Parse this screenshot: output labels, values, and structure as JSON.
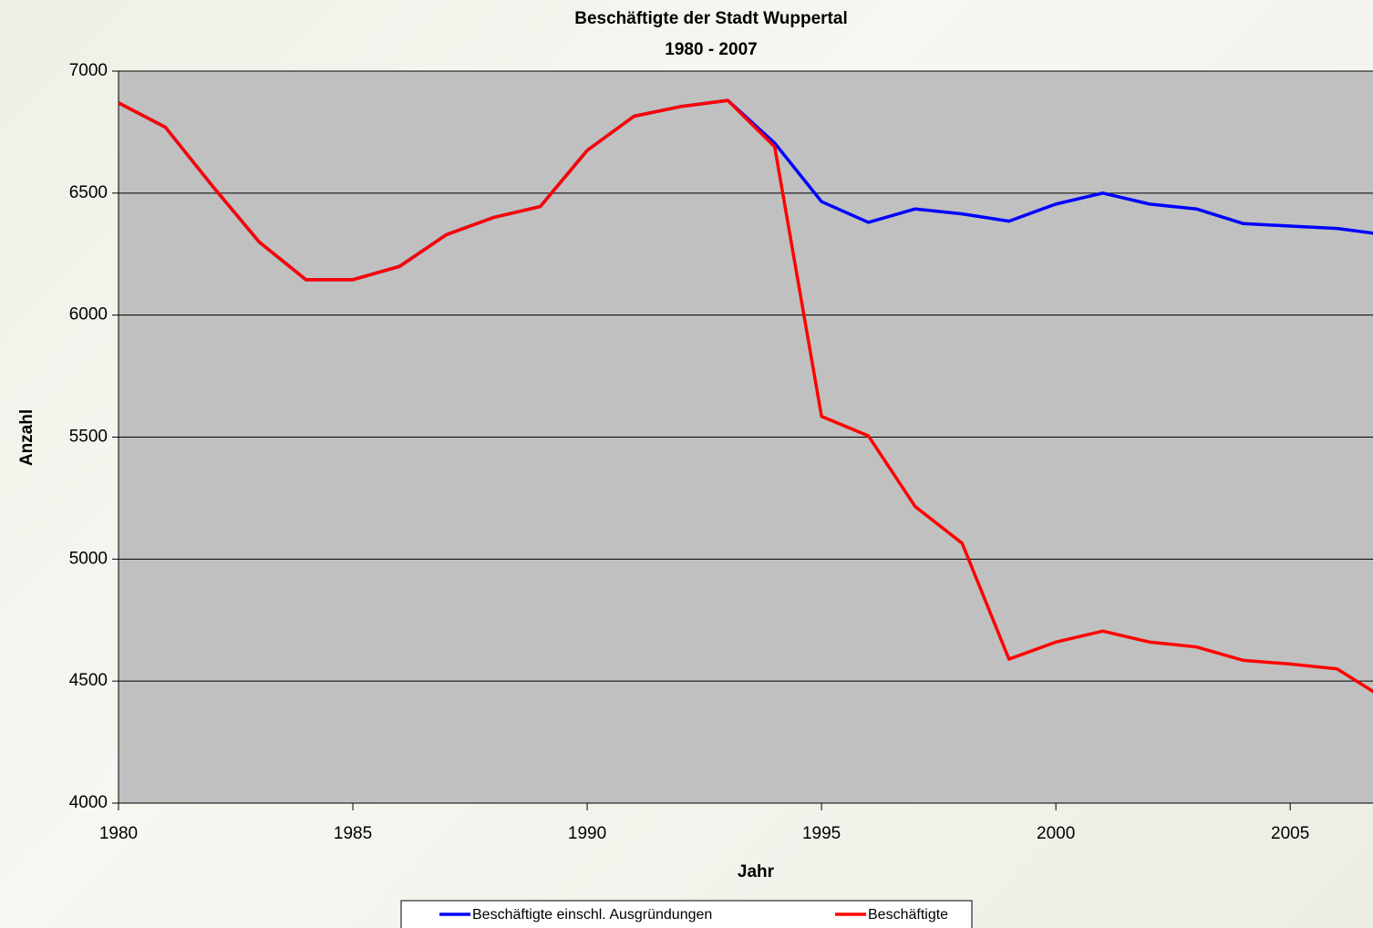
{
  "chart_data": {
    "type": "line",
    "title": "Beschäftigte der Stadt Wuppertal",
    "subtitle": "1980 - 2007",
    "x_label": "Jahr",
    "y_label": "Anzahl",
    "x": [
      1980,
      1981,
      1982,
      1983,
      1984,
      1985,
      1986,
      1987,
      1988,
      1989,
      1990,
      1991,
      1992,
      1993,
      1994,
      1995,
      1996,
      1997,
      1998,
      1999,
      2000,
      2001,
      2002,
      2003,
      2004,
      2005,
      2006,
      2007
    ],
    "series": [
      {
        "name": "Beschäftigte einschl. Ausgründungen",
        "color": "#0000ff",
        "values": [
          6870,
          6770,
          6530,
          6300,
          6145,
          6145,
          6200,
          6330,
          6400,
          6445,
          6675,
          6815,
          6855,
          6880,
          6705,
          6465,
          6380,
          6435,
          6415,
          6385,
          6455,
          6500,
          6455,
          6435,
          6375,
          6365,
          6355,
          6330
        ]
      },
      {
        "name": "Beschäftigte",
        "color": "#ff0000",
        "values": [
          6870,
          6770,
          6530,
          6300,
          6145,
          6145,
          6200,
          6330,
          6400,
          6445,
          6675,
          6815,
          6855,
          6880,
          6690,
          5585,
          5505,
          5215,
          5065,
          4590,
          4660,
          4705,
          4660,
          4640,
          4585,
          4570,
          4550,
          4430
        ]
      }
    ],
    "xlim": [
      1980,
      2007
    ],
    "xticks": [
      1980,
      1985,
      1990,
      1995,
      2000,
      2005
    ],
    "ylim": [
      4000,
      7000
    ],
    "yticks": [
      4000,
      4500,
      5000,
      5500,
      6000,
      6500,
      7000
    ],
    "grid": true,
    "legend": "bottom",
    "plot_background": "#c0c0c0"
  }
}
